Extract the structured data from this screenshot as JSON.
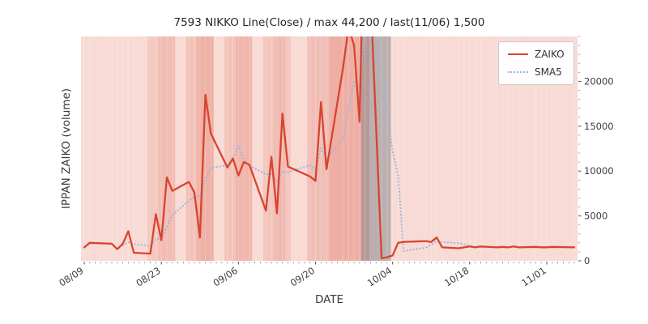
{
  "chart_data": {
    "type": "line",
    "title": "7593 NIKKO Line(Close) / max 44,200 / last(11/06) 1,500",
    "xlabel": "DATE",
    "ylabel": "IPPAN ZAIKO (volume)",
    "ylim": [
      0,
      25000
    ],
    "yticks": [
      0,
      5000,
      10000,
      15000,
      20000
    ],
    "xtick_labels": [
      "08/09",
      "08/23",
      "09/06",
      "09/20",
      "10/04",
      "10/18",
      "11/01"
    ],
    "xtick_days": [
      0,
      14,
      28,
      42,
      56,
      70,
      84
    ],
    "x_dates": [
      "08/09",
      "08/10",
      "08/14",
      "08/15",
      "08/16",
      "08/17",
      "08/18",
      "08/21",
      "08/22",
      "08/23",
      "08/24",
      "08/25",
      "08/28",
      "08/29",
      "08/30",
      "08/31",
      "09/01",
      "09/04",
      "09/05",
      "09/06",
      "09/07",
      "09/08",
      "09/11",
      "09/12",
      "09/13",
      "09/14",
      "09/15",
      "09/19",
      "09/20",
      "09/21",
      "09/22",
      "09/25",
      "09/26",
      "09/27",
      "09/28",
      "09/29",
      "10/02",
      "10/03",
      "10/04",
      "10/05",
      "10/06",
      "10/10",
      "10/11",
      "10/12",
      "10/13",
      "10/16",
      "10/17",
      "10/18",
      "10/19",
      "10/20",
      "10/23",
      "10/24",
      "10/25",
      "10/26",
      "10/27",
      "10/30",
      "10/31",
      "11/01",
      "11/02",
      "11/06"
    ],
    "x_day_offsets": [
      0,
      1,
      5,
      6,
      7,
      8,
      9,
      12,
      13,
      14,
      15,
      16,
      19,
      20,
      21,
      22,
      23,
      26,
      27,
      28,
      29,
      30,
      33,
      34,
      35,
      36,
      37,
      41,
      42,
      43,
      44,
      47,
      48,
      49,
      50,
      51,
      54,
      55,
      56,
      57,
      58,
      62,
      63,
      64,
      65,
      68,
      69,
      70,
      71,
      72,
      75,
      76,
      77,
      78,
      79,
      82,
      83,
      84,
      85,
      89
    ],
    "series": [
      {
        "name": "ZAIKO",
        "color": "#d9432f",
        "line_style": "solid",
        "values": [
          1500,
          2000,
          1900,
          1300,
          1900,
          3300,
          900,
          800,
          5200,
          2300,
          9300,
          7800,
          8800,
          7600,
          2600,
          18500,
          14200,
          10400,
          11400,
          9500,
          11000,
          10700,
          5600,
          11600,
          5300,
          16400,
          10500,
          9400,
          8900,
          17700,
          10200,
          21500,
          26000,
          24000,
          15500,
          44200,
          300,
          400,
          600,
          2000,
          2100,
          2200,
          2100,
          2600,
          1500,
          1400,
          1500,
          1600,
          1500,
          1600,
          1500,
          1550,
          1500,
          1600,
          1500,
          1550,
          1500,
          1500,
          1550,
          1500
        ]
      },
      {
        "name": "SMA5",
        "color": "#9db7dc",
        "line_style": "dotted",
        "derived_from": "ZAIKO",
        "window": 5
      }
    ],
    "legend_position": "upper right",
    "grid": false,
    "max_value": 44200,
    "last_date": "11/06",
    "last_value": 1500,
    "background": {
      "plot_bg": "#f8dbd5",
      "stripe_color": "#dc5843",
      "stripes": [
        {
          "from": 11.5,
          "to": 16.5,
          "alpha": 0.14
        },
        {
          "from": 13.5,
          "to": 16.5,
          "alpha": 0.1
        },
        {
          "from": 18.5,
          "to": 23.5,
          "alpha": 0.2
        },
        {
          "from": 20.5,
          "to": 23.5,
          "alpha": 0.14
        },
        {
          "from": 25.5,
          "to": 30.5,
          "alpha": 0.18
        },
        {
          "from": 27.5,
          "to": 30.5,
          "alpha": 0.12
        },
        {
          "from": 32.5,
          "to": 37.5,
          "alpha": 0.16
        },
        {
          "from": 34.5,
          "to": 36.5,
          "alpha": 0.1
        },
        {
          "from": 40.5,
          "to": 44.5,
          "alpha": 0.22
        },
        {
          "from": 44.5,
          "to": 51.8,
          "alpha": 0.34
        }
      ],
      "gray_band": {
        "from": 50.3,
        "to": 55.7,
        "color": "#7f848b",
        "alpha": 0.5
      }
    }
  }
}
